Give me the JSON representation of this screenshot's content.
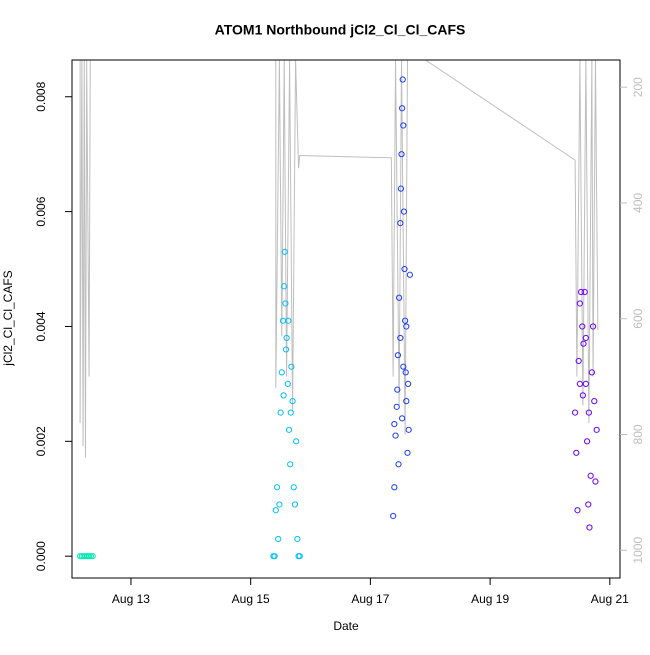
{
  "chart_data": {
    "type": "scatter",
    "title": "ATOM1 Northbound jCl2_Cl_Cl_CAFS",
    "xlabel": "Date",
    "ylabel": "jCl2_Cl_Cl_CAFS",
    "xlim": [
      12.015,
      21.17
    ],
    "xticks": [
      {
        "value": 13,
        "label": "Aug 13"
      },
      {
        "value": 15,
        "label": "Aug 15"
      },
      {
        "value": 17,
        "label": "Aug 17"
      },
      {
        "value": 19,
        "label": "Aug 19"
      },
      {
        "value": 21,
        "label": "Aug 21"
      }
    ],
    "ylim": [
      -0.00038,
      0.00864
    ],
    "yticks": [
      {
        "value": 0,
        "label": "0.000"
      },
      0.002,
      0.004,
      0.006,
      0.008
    ],
    "y2lim": [
      1048,
      153
    ],
    "y2ticks": [
      200,
      400,
      600,
      800,
      1000
    ],
    "series": [
      {
        "color": "#00e8b0",
        "x": [
          12.15,
          12.18,
          12.21,
          12.24,
          12.27,
          12.3,
          12.33,
          12.36
        ],
        "values": [
          0,
          0,
          0,
          0,
          0,
          0,
          0,
          0
        ]
      },
      {
        "color": "#00bfff",
        "x": [
          15.38,
          15.4,
          15.42,
          15.44,
          15.46,
          15.48,
          15.5,
          15.52,
          15.54,
          15.56,
          15.57,
          15.58,
          15.6,
          15.62,
          15.64,
          15.66,
          15.68,
          15.7,
          15.72,
          15.74,
          15.76,
          15.78,
          15.8,
          15.82,
          15.55,
          15.59,
          15.63,
          15.67
        ],
        "values": [
          0,
          0,
          0.0008,
          0.0012,
          0.0003,
          0.0009,
          0.0025,
          0.0032,
          0.0041,
          0.0047,
          0.0053,
          0.0044,
          0.0038,
          0.003,
          0.0022,
          0.0016,
          0.0033,
          0.0027,
          0.0012,
          0.0009,
          0.002,
          0.0003,
          0,
          0,
          0.0028,
          0.0036,
          0.0041,
          0.0025
        ]
      },
      {
        "color": "#1a3cff",
        "x": [
          17.38,
          17.4,
          17.42,
          17.44,
          17.46,
          17.48,
          17.5,
          17.51,
          17.52,
          17.53,
          17.54,
          17.55,
          17.56,
          17.57,
          17.58,
          17.59,
          17.6,
          17.62,
          17.64,
          17.66,
          17.45,
          17.5,
          17.55,
          17.6,
          17.63,
          17.4,
          17.47,
          17.53
        ],
        "values": [
          0.0007,
          0.0012,
          0.0021,
          0.0026,
          0.0035,
          0.0045,
          0.0058,
          0.0064,
          0.007,
          0.0078,
          0.0083,
          0.0075,
          0.006,
          0.005,
          0.0041,
          0.0032,
          0.0027,
          0.0018,
          0.0022,
          0.0049,
          0.0029,
          0.0038,
          0.0033,
          0.004,
          0.003,
          0.0023,
          0.0016,
          0.0024
        ]
      },
      {
        "color": "#6a00ff",
        "x": [
          20.42,
          20.44,
          20.46,
          20.48,
          20.5,
          20.52,
          20.54,
          20.56,
          20.58,
          20.6,
          20.62,
          20.64,
          20.66,
          20.68,
          20.7,
          20.72,
          20.74,
          20.76,
          20.78,
          20.5,
          20.55,
          20.6,
          20.65
        ],
        "values": [
          0.0025,
          0.0018,
          0.0008,
          0.0034,
          0.0044,
          0.0046,
          0.004,
          0.0037,
          0.0046,
          0.003,
          0.002,
          0.0009,
          0.0005,
          0.0014,
          0.0032,
          0.004,
          0.0027,
          0.0013,
          0.0022,
          0.003,
          0.0028,
          0.0038,
          0.0025
        ]
      },
      {
        "color": "#bebebe",
        "axis": "y2",
        "line": true,
        "x": [
          12.15,
          12.15,
          12.18,
          12.2,
          12.22,
          12.24,
          12.26,
          12.3,
          12.32,
          15.42,
          15.42,
          15.48,
          15.52,
          15.56,
          15.6,
          15.65,
          15.7,
          15.75,
          15.8,
          15.82,
          17.35,
          17.38,
          17.42,
          17.48,
          17.52,
          17.58,
          17.62,
          17.92,
          20.42,
          20.45,
          20.5,
          20.55,
          20.6,
          20.65,
          20.7,
          20.72,
          20.76,
          20.8
        ],
        "values": [
          153,
          780,
          153,
          820,
          153,
          840,
          153,
          700,
          153,
          153,
          720,
          153,
          630,
          153,
          700,
          153,
          760,
          153,
          340,
          318,
          322,
          700,
          153,
          750,
          153,
          800,
          153,
          153,
          326,
          700,
          153,
          750,
          153,
          780,
          153,
          700,
          153,
          620
        ]
      }
    ]
  }
}
